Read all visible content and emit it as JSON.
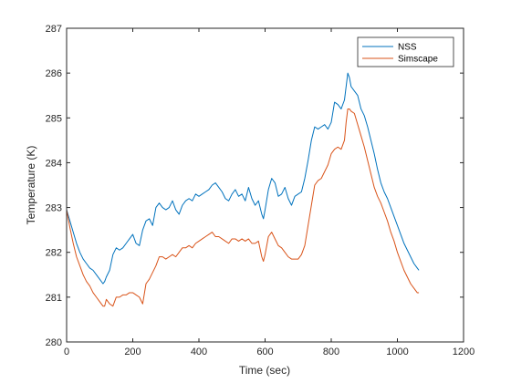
{
  "chart_data": {
    "type": "line",
    "title": "",
    "xlabel": "Time (sec)",
    "ylabel": "Temperature (K)",
    "xlim": [
      0,
      1200
    ],
    "ylim": [
      280,
      287
    ],
    "xticks": [
      0,
      200,
      400,
      600,
      800,
      1000,
      1200
    ],
    "yticks": [
      280,
      281,
      282,
      283,
      284,
      285,
      286,
      287
    ],
    "grid": false,
    "legend_position": "top-right",
    "series": [
      {
        "name": "NSS",
        "color": "#0072BD",
        "x": [
          0,
          10,
          20,
          30,
          40,
          50,
          60,
          70,
          80,
          90,
          100,
          110,
          115,
          120,
          130,
          140,
          150,
          160,
          170,
          180,
          190,
          200,
          210,
          220,
          230,
          240,
          250,
          260,
          270,
          280,
          290,
          300,
          310,
          320,
          330,
          340,
          350,
          360,
          370,
          380,
          390,
          400,
          410,
          420,
          430,
          440,
          450,
          460,
          470,
          480,
          490,
          500,
          510,
          520,
          530,
          540,
          550,
          560,
          570,
          580,
          590,
          595,
          600,
          610,
          620,
          630,
          640,
          650,
          660,
          670,
          680,
          690,
          700,
          710,
          720,
          730,
          740,
          750,
          760,
          770,
          780,
          790,
          800,
          810,
          820,
          830,
          840,
          845,
          850,
          855,
          860,
          870,
          880,
          890,
          900,
          910,
          920,
          930,
          940,
          950,
          960,
          970,
          980,
          990,
          1000,
          1010,
          1020,
          1030,
          1040,
          1050,
          1060,
          1065
        ],
        "y": [
          282.95,
          282.7,
          282.45,
          282.2,
          282.0,
          281.85,
          281.75,
          281.65,
          281.6,
          281.5,
          281.4,
          281.3,
          281.35,
          281.45,
          281.6,
          281.95,
          282.1,
          282.05,
          282.1,
          282.2,
          282.3,
          282.4,
          282.2,
          282.15,
          282.5,
          282.7,
          282.75,
          282.6,
          283.0,
          283.1,
          283.0,
          282.95,
          283.0,
          283.15,
          282.95,
          282.85,
          283.05,
          283.15,
          283.2,
          283.15,
          283.3,
          283.25,
          283.3,
          283.35,
          283.4,
          283.5,
          283.55,
          283.45,
          283.35,
          283.2,
          283.15,
          283.3,
          283.4,
          283.25,
          283.3,
          283.15,
          283.45,
          283.2,
          283.05,
          283.15,
          282.85,
          282.75,
          282.95,
          283.4,
          283.65,
          283.55,
          283.25,
          283.3,
          283.45,
          283.2,
          283.05,
          283.25,
          283.3,
          283.35,
          283.65,
          284.05,
          284.5,
          284.8,
          284.75,
          284.8,
          284.85,
          284.75,
          284.9,
          285.35,
          285.3,
          285.2,
          285.4,
          285.7,
          286.0,
          285.9,
          285.7,
          285.6,
          285.5,
          285.2,
          285.05,
          284.8,
          284.5,
          284.2,
          283.85,
          283.55,
          283.35,
          283.2,
          283.0,
          282.8,
          282.6,
          282.4,
          282.2,
          282.05,
          281.9,
          281.75,
          281.65,
          281.6
        ]
      },
      {
        "name": "Simscape",
        "color": "#D95319",
        "x": [
          0,
          10,
          20,
          30,
          40,
          50,
          60,
          70,
          80,
          90,
          100,
          110,
          115,
          120,
          130,
          140,
          150,
          160,
          170,
          180,
          190,
          200,
          210,
          220,
          230,
          240,
          250,
          260,
          270,
          280,
          290,
          300,
          310,
          320,
          330,
          340,
          350,
          360,
          370,
          380,
          390,
          400,
          410,
          420,
          430,
          440,
          450,
          460,
          470,
          480,
          490,
          500,
          510,
          520,
          530,
          540,
          550,
          560,
          570,
          580,
          590,
          595,
          600,
          610,
          620,
          630,
          640,
          650,
          660,
          670,
          680,
          690,
          700,
          710,
          720,
          730,
          740,
          750,
          760,
          770,
          780,
          790,
          800,
          810,
          820,
          830,
          840,
          845,
          850,
          855,
          860,
          870,
          880,
          890,
          900,
          910,
          920,
          930,
          940,
          950,
          960,
          970,
          980,
          990,
          1000,
          1010,
          1020,
          1030,
          1040,
          1050,
          1060,
          1065
        ],
        "y": [
          282.95,
          282.55,
          282.2,
          281.9,
          281.7,
          281.5,
          281.35,
          281.25,
          281.1,
          281.0,
          280.9,
          280.8,
          280.8,
          280.95,
          280.85,
          280.8,
          281.0,
          281.0,
          281.05,
          281.05,
          281.1,
          281.1,
          281.05,
          281.0,
          280.85,
          281.3,
          281.4,
          281.55,
          281.7,
          281.9,
          281.9,
          281.85,
          281.9,
          281.95,
          281.9,
          282.0,
          282.1,
          282.1,
          282.15,
          282.1,
          282.2,
          282.25,
          282.3,
          282.35,
          282.4,
          282.45,
          282.35,
          282.35,
          282.3,
          282.25,
          282.2,
          282.3,
          282.3,
          282.25,
          282.3,
          282.25,
          282.3,
          282.2,
          282.2,
          282.25,
          281.9,
          281.8,
          281.95,
          282.35,
          282.45,
          282.3,
          282.15,
          282.1,
          282.0,
          281.9,
          281.85,
          281.85,
          281.85,
          281.95,
          282.15,
          282.6,
          283.05,
          283.5,
          283.6,
          283.65,
          283.8,
          283.95,
          284.2,
          284.3,
          284.35,
          284.3,
          284.5,
          284.9,
          285.2,
          285.2,
          285.15,
          285.1,
          284.85,
          284.6,
          284.35,
          284.05,
          283.75,
          283.45,
          283.25,
          283.1,
          282.9,
          282.7,
          282.45,
          282.25,
          282.0,
          281.8,
          281.6,
          281.45,
          281.3,
          281.2,
          281.1,
          281.1
        ]
      }
    ]
  }
}
